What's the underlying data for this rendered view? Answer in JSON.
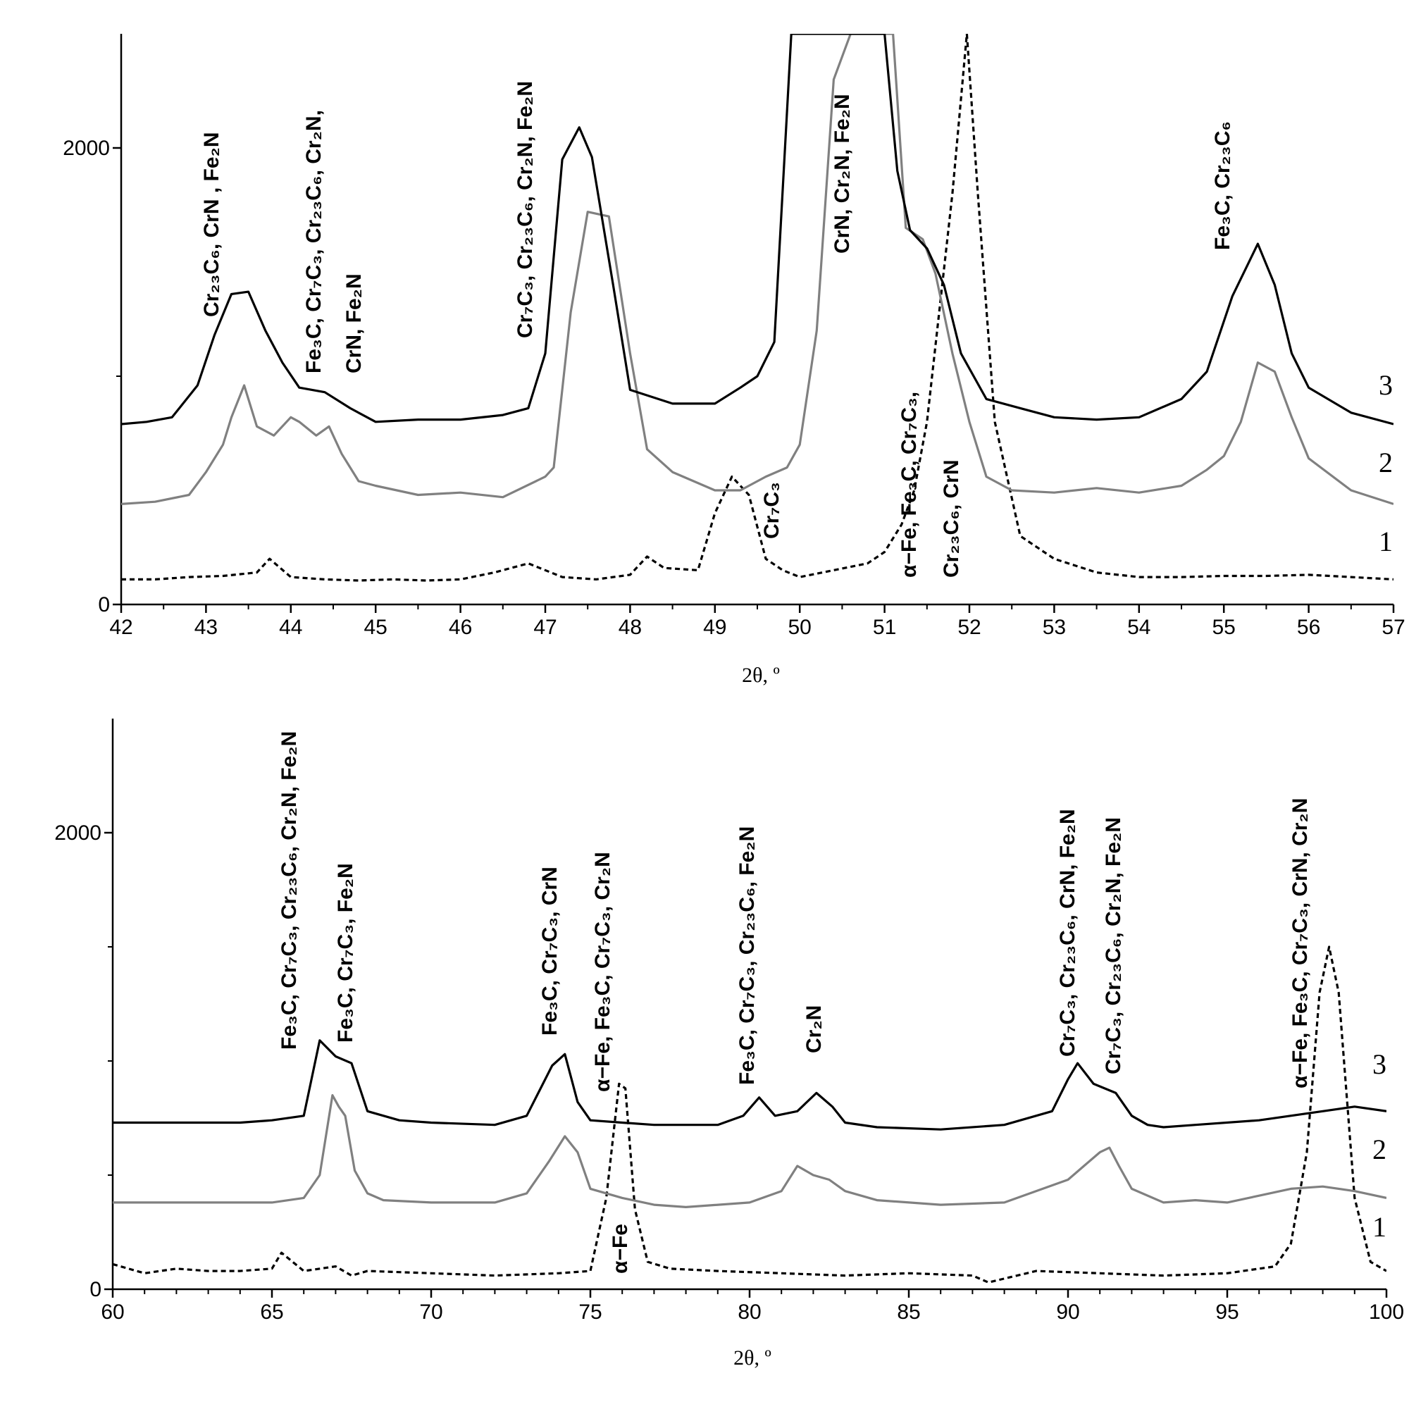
{
  "chart_data": [
    {
      "type": "line",
      "xlabel": "2θ, º",
      "ylabel": "",
      "xlim": [
        42,
        57
      ],
      "ylim": [
        0,
        2500
      ],
      "x_ticks": [
        "42",
        "43",
        "44",
        "45",
        "46",
        "47",
        "48",
        "49",
        "50",
        "51",
        "52",
        "53",
        "54",
        "55",
        "56",
        "57"
      ],
      "y_ticks": [
        "0",
        "2000"
      ],
      "series": [
        {
          "name": "1",
          "style": "dashed",
          "color": "#000000",
          "x": [
            42,
            42.4,
            42.8,
            43.2,
            43.6,
            43.75,
            44,
            44.4,
            44.8,
            45.2,
            45.6,
            46,
            46.4,
            46.8,
            47.2,
            47.6,
            48,
            48.2,
            48.4,
            48.8,
            49,
            49.2,
            49.4,
            49.6,
            49.8,
            50,
            50.4,
            50.8,
            51,
            51.2,
            51.35,
            51.5,
            51.8,
            51.97,
            52.1,
            52.3,
            52.6,
            53,
            53.5,
            54,
            54.5,
            55,
            55.5,
            56,
            56.5,
            57
          ],
          "y": [
            110,
            110,
            120,
            125,
            140,
            200,
            120,
            110,
            105,
            110,
            105,
            110,
            140,
            180,
            120,
            110,
            130,
            210,
            160,
            150,
            400,
            560,
            480,
            200,
            150,
            120,
            150,
            180,
            230,
            350,
            500,
            800,
            1800,
            2500,
            1800,
            800,
            300,
            200,
            140,
            120,
            120,
            125,
            125,
            130,
            120,
            110
          ]
        },
        {
          "name": "2",
          "style": "solid",
          "color": "#808080",
          "x": [
            42,
            42.4,
            42.8,
            43,
            43.2,
            43.3,
            43.45,
            43.6,
            43.8,
            44,
            44.1,
            44.3,
            44.45,
            44.6,
            44.8,
            45,
            45.5,
            46,
            46.5,
            47,
            47.1,
            47.3,
            47.5,
            47.75,
            48,
            48.2,
            48.5,
            49,
            49.3,
            49.6,
            49.85,
            50,
            50.2,
            50.4,
            50.6,
            50.9,
            51.1,
            51.25,
            51.45,
            51.6,
            51.8,
            52,
            52.2,
            52.5,
            53,
            53.5,
            54,
            54.5,
            54.8,
            55,
            55.2,
            55.4,
            55.6,
            55.8,
            56,
            56.5,
            57
          ],
          "y": [
            440,
            450,
            480,
            580,
            700,
            820,
            960,
            780,
            740,
            820,
            800,
            740,
            780,
            660,
            540,
            520,
            480,
            490,
            470,
            560,
            600,
            1280,
            1720,
            1700,
            1100,
            680,
            580,
            500,
            500,
            560,
            600,
            700,
            1200,
            2300,
            2500,
            2500,
            2500,
            1650,
            1600,
            1450,
            1100,
            800,
            560,
            500,
            490,
            510,
            490,
            520,
            590,
            650,
            800,
            1060,
            1020,
            820,
            640,
            500,
            440
          ]
        },
        {
          "name": "3",
          "style": "solid",
          "color": "#000000",
          "x": [
            42,
            42.3,
            42.6,
            42.9,
            43.1,
            43.3,
            43.5,
            43.7,
            43.9,
            44.1,
            44.4,
            44.7,
            45,
            45.5,
            46,
            46.5,
            46.8,
            47,
            47.2,
            47.4,
            47.55,
            47.8,
            48,
            48.5,
            49,
            49.3,
            49.5,
            49.7,
            49.9,
            50.1,
            50.3,
            50.5,
            50.7,
            51,
            51.15,
            51.3,
            51.5,
            51.7,
            51.9,
            52.2,
            52.6,
            53,
            53.5,
            54,
            54.5,
            54.8,
            55.1,
            55.4,
            55.6,
            55.8,
            56,
            56.5,
            57
          ],
          "y": [
            790,
            800,
            820,
            960,
            1180,
            1360,
            1370,
            1200,
            1060,
            950,
            930,
            860,
            800,
            810,
            810,
            830,
            860,
            1100,
            1950,
            2090,
            1960,
            1400,
            940,
            880,
            880,
            950,
            1000,
            1150,
            2500,
            2500,
            2500,
            2500,
            2500,
            2500,
            1900,
            1640,
            1560,
            1400,
            1100,
            900,
            860,
            820,
            810,
            820,
            900,
            1020,
            1350,
            1580,
            1400,
            1100,
            950,
            840,
            790
          ]
        }
      ],
      "annotations": [
        {
          "type": "peak-label",
          "lines": [
            [
              "Cr₂₃C₆, CrN , Fe₂N"
            ]
          ]
        },
        {
          "type": "peak-label",
          "lines": [
            [
              "Fe₃C, Cr₇C₃, Cr₂₃C₆, Cr₂N,"
            ],
            [
              "CrN, Fe₂N"
            ]
          ]
        },
        {
          "type": "peak-label",
          "lines": [
            [
              "Cr₇C₃, Cr₂₃C₆, Cr₂N,  Fe₂N"
            ]
          ]
        },
        {
          "type": "peak-label",
          "lines": [
            [
              "CrN, Cr₂N, Fe₂N"
            ]
          ]
        },
        {
          "type": "peak-label",
          "lines": [
            [
              "Cr₇C₃"
            ]
          ]
        },
        {
          "type": "peak-label",
          "lines": [
            [
              "α−Fe, Fe₃C, Cr₇C₃,"
            ],
            [
              "Cr₂₃C₆, CrN"
            ]
          ]
        },
        {
          "type": "peak-label",
          "lines": [
            [
              "Fe₃C, Cr₂₃C₆"
            ]
          ]
        }
      ]
    },
    {
      "type": "line",
      "xlabel": "2θ, º",
      "ylabel": "",
      "xlim": [
        60,
        100
      ],
      "ylim": [
        0,
        2500
      ],
      "x_ticks": [
        "60",
        "65",
        "70",
        "75",
        "80",
        "85",
        "90",
        "95",
        "100"
      ],
      "y_ticks": [
        "0",
        "2000"
      ],
      "series": [
        {
          "name": "1",
          "style": "dashed",
          "color": "#000000",
          "x": [
            60,
            61,
            62,
            63,
            64,
            65,
            65.3,
            66,
            67,
            67.5,
            68,
            70,
            72,
            74,
            75,
            75.5,
            75.9,
            76.1,
            76.4,
            76.8,
            77.5,
            79,
            81,
            83,
            85,
            87,
            87.5,
            89,
            91,
            93,
            95,
            96.5,
            97,
            97.5,
            97.9,
            98.2,
            98.5,
            99,
            99.5,
            100
          ],
          "y": [
            110,
            70,
            90,
            80,
            80,
            90,
            160,
            80,
            100,
            60,
            80,
            70,
            60,
            70,
            80,
            400,
            900,
            880,
            350,
            120,
            90,
            80,
            70,
            60,
            70,
            60,
            30,
            80,
            70,
            60,
            70,
            100,
            200,
            600,
            1300,
            1500,
            1300,
            400,
            120,
            80
          ]
        },
        {
          "name": "2",
          "style": "solid",
          "color": "#808080",
          "x": [
            60,
            61,
            62,
            63,
            64,
            65,
            66,
            66.5,
            66.9,
            67.1,
            67.3,
            67.6,
            68,
            68.5,
            70,
            72,
            73,
            73.7,
            74.2,
            74.6,
            75,
            76,
            77,
            78,
            80,
            81,
            81.5,
            82,
            82.5,
            83,
            84,
            86,
            88,
            90,
            90.5,
            91,
            91.3,
            91.6,
            92,
            93,
            94,
            95,
            96,
            97,
            98,
            99,
            100
          ],
          "y": [
            380,
            380,
            380,
            380,
            380,
            380,
            400,
            500,
            850,
            800,
            760,
            520,
            420,
            390,
            380,
            380,
            420,
            560,
            670,
            600,
            440,
            400,
            370,
            360,
            380,
            430,
            540,
            500,
            480,
            430,
            390,
            370,
            380,
            480,
            540,
            600,
            620,
            540,
            440,
            380,
            390,
            380,
            410,
            440,
            450,
            430,
            400
          ]
        },
        {
          "name": "3",
          "style": "solid",
          "color": "#000000",
          "x": [
            60,
            61,
            62,
            63,
            64,
            65,
            66,
            66.5,
            67,
            67.5,
            68,
            69,
            70,
            72,
            73,
            73.8,
            74.2,
            74.6,
            75,
            76,
            77,
            79,
            79.8,
            80.3,
            80.8,
            81.5,
            82.1,
            82.6,
            83,
            84,
            86,
            88,
            89.5,
            90,
            90.3,
            90.8,
            91.5,
            92,
            92.5,
            93,
            94,
            96,
            98,
            99,
            100
          ],
          "y": [
            730,
            730,
            730,
            730,
            730,
            740,
            760,
            1090,
            1020,
            990,
            780,
            740,
            730,
            720,
            760,
            980,
            1030,
            820,
            740,
            730,
            720,
            720,
            760,
            840,
            760,
            780,
            860,
            800,
            730,
            710,
            700,
            720,
            780,
            920,
            990,
            900,
            860,
            760,
            720,
            710,
            720,
            740,
            780,
            800,
            780
          ]
        }
      ],
      "annotations": [
        {
          "type": "peak-label",
          "lines": [
            [
              "Fe₃C, Cr₇C₃, Cr₂₃C₆, Cr₂N, Fe₂N"
            ]
          ]
        },
        {
          "type": "peak-label",
          "lines": [
            [
              "Fe₃C, Cr₇C₃, Fe₂N"
            ]
          ]
        },
        {
          "type": "peak-label",
          "lines": [
            [
              "Fe₃C, Cr₇C₃, CrN"
            ]
          ]
        },
        {
          "type": "peak-label",
          "lines": [
            [
              "α−Fe, Fe₃C, Cr₇C₃, Cr₂N"
            ]
          ]
        },
        {
          "type": "peak-label",
          "lines": [
            [
              "α−Fe"
            ]
          ]
        },
        {
          "type": "peak-label",
          "lines": [
            [
              "Fe₃C, Cr₇C₃, Cr₂₃C₆,  Fe₂N"
            ]
          ]
        },
        {
          "type": "peak-label",
          "lines": [
            [
              "Cr₂N"
            ]
          ]
        },
        {
          "type": "peak-label",
          "lines": [
            [
              "Cr₇C₃, Cr₂₃C₆,  CrN,  Fe₂N"
            ]
          ]
        },
        {
          "type": "peak-label",
          "lines": [
            [
              "Cr₇C₃, Cr₂₃C₆, Cr₂N,  Fe₂N"
            ]
          ]
        },
        {
          "type": "peak-label",
          "lines": [
            [
              "α−Fe, Fe₃C, Cr₇C₃, CrN, Cr₂N"
            ]
          ]
        }
      ]
    }
  ]
}
